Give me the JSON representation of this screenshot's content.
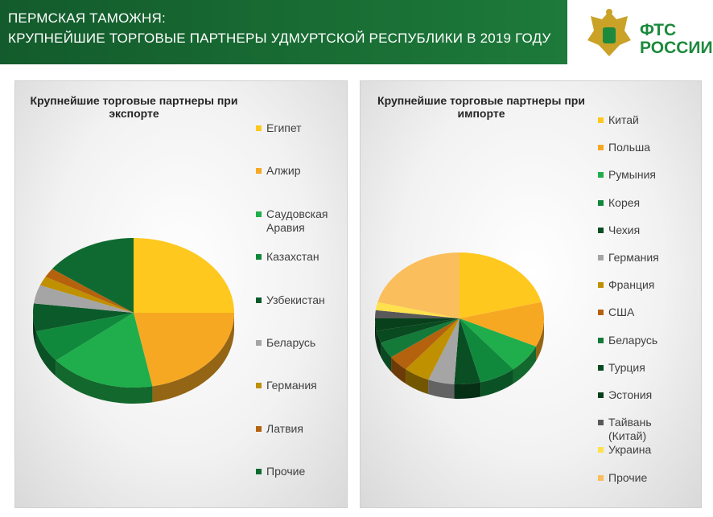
{
  "header": {
    "line1": "ПЕРМСКАЯ ТАМОЖНЯ:",
    "line2": "КРУПНЕЙШИЕ  ТОРГОВЫЕ  ПАРТНЕРЫ  УДМУРТСКОЙ  РЕСПУБЛИКИ  В  2019  ГОДУ",
    "logo_line1": "ФТС",
    "logo_line2": "РОССИИ"
  },
  "chart_data": [
    {
      "type": "pie",
      "title": "Крупнейшие торговые партнеры при экспорте",
      "categories": [
        "Египет",
        "Алжир",
        "Саудовская Аравия",
        "Казахстан",
        "Узбекистан",
        "Беларусь",
        "Германия",
        "Латвия",
        "Прочие"
      ],
      "values": [
        25,
        22,
        17,
        7,
        6,
        4,
        2,
        2,
        15
      ],
      "colors": [
        "#FFC81E",
        "#F7A823",
        "#1FAE4B",
        "#11893D",
        "#0B5A29",
        "#A5A5A5",
        "#BF9000",
        "#B5620E",
        "#0F6A31"
      ]
    },
    {
      "type": "pie",
      "title": "Крупнейшие торговые партнеры при импорте",
      "categories": [
        "Китай",
        "Польша",
        "Румыния",
        "Корея",
        "Чехия",
        "Германия",
        "Франция",
        "США",
        "Беларусь",
        "Турция",
        "Эстония",
        "Тайвань (Китай)",
        "Украина",
        "Прочие"
      ],
      "values": [
        21,
        11,
        7,
        7,
        5,
        5,
        5,
        4,
        4,
        3,
        3,
        2,
        2,
        21
      ],
      "colors": [
        "#FFC81E",
        "#F7A823",
        "#1FAE4B",
        "#11893D",
        "#0A4E24",
        "#A5A5A5",
        "#BF9000",
        "#B5620E",
        "#137A3A",
        "#0A4A20",
        "#07401B",
        "#595959",
        "#FFE14D",
        "#FBBE5C"
      ]
    }
  ]
}
